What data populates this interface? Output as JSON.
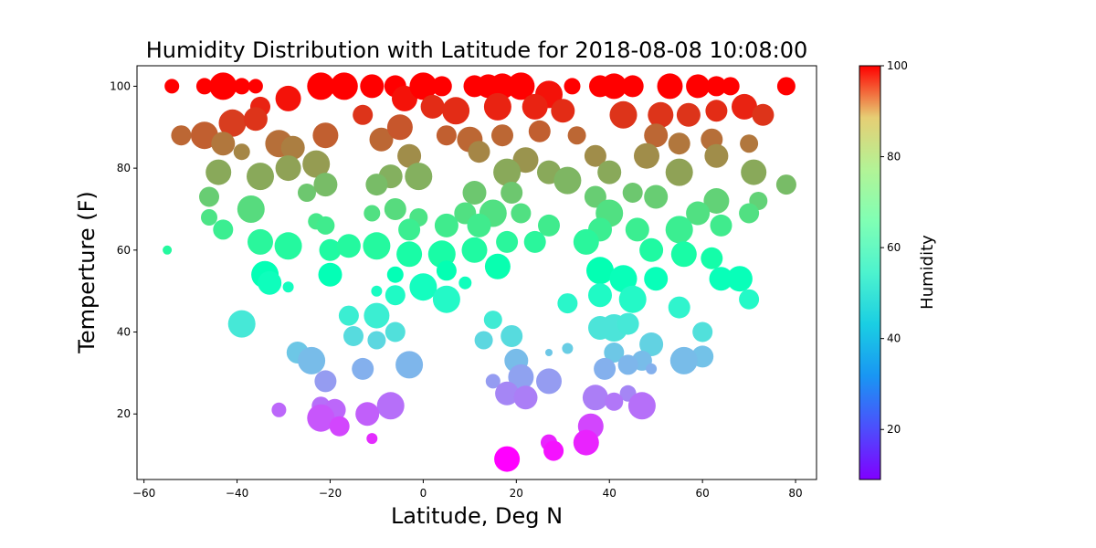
{
  "chart_data": {
    "type": "scatter",
    "title": "Humidity Distribution with Latitude for 2018-08-08 10:08:00",
    "xlabel": "Latitude, Deg N",
    "ylabel": "Temperture (F)",
    "colorbar_label": "Humidity",
    "xlim": [
      -61.5,
      84.5
    ],
    "ylim": [
      4,
      105
    ],
    "xticks": [
      -60,
      -40,
      -20,
      0,
      20,
      40,
      60,
      80
    ],
    "xtick_labels": [
      "−60",
      "−40",
      "−20",
      "0",
      "20",
      "40",
      "60",
      "80"
    ],
    "yticks": [
      20,
      40,
      60,
      80,
      100
    ],
    "ytick_labels": [
      "20",
      "40",
      "60",
      "80",
      "100"
    ],
    "colorbar_range": [
      9,
      100
    ],
    "colorbar_ticks": [
      20,
      40,
      60,
      80,
      100
    ],
    "colorbar_tick_labels": [
      "20",
      "40",
      "60",
      "80",
      "100"
    ],
    "colormap": "rainbow",
    "grid": false,
    "legend": "none",
    "points": [
      {
        "x": -54,
        "y": 100,
        "h": 100,
        "s": 8
      },
      {
        "x": -47,
        "y": 100,
        "h": 100,
        "s": 9
      },
      {
        "x": -43,
        "y": 100,
        "h": 100,
        "s": 15
      },
      {
        "x": -39,
        "y": 100,
        "h": 100,
        "s": 9
      },
      {
        "x": -36,
        "y": 100,
        "h": 100,
        "s": 8
      },
      {
        "x": -29,
        "y": 97,
        "h": 98,
        "s": 14
      },
      {
        "x": -22,
        "y": 100,
        "h": 100,
        "s": 15
      },
      {
        "x": -17,
        "y": 100,
        "h": 100,
        "s": 15
      },
      {
        "x": -11,
        "y": 100,
        "h": 100,
        "s": 13
      },
      {
        "x": -6,
        "y": 100,
        "h": 100,
        "s": 12
      },
      {
        "x": -4,
        "y": 97,
        "h": 98,
        "s": 14
      },
      {
        "x": 0,
        "y": 100,
        "h": 100,
        "s": 15
      },
      {
        "x": 4,
        "y": 100,
        "h": 100,
        "s": 11
      },
      {
        "x": 11,
        "y": 100,
        "h": 100,
        "s": 12
      },
      {
        "x": 14,
        "y": 100,
        "h": 100,
        "s": 13
      },
      {
        "x": 17,
        "y": 100,
        "h": 100,
        "s": 14
      },
      {
        "x": 21,
        "y": 100,
        "h": 100,
        "s": 15
      },
      {
        "x": 27,
        "y": 98,
        "h": 98,
        "s": 15
      },
      {
        "x": 32,
        "y": 100,
        "h": 100,
        "s": 9
      },
      {
        "x": 38,
        "y": 100,
        "h": 100,
        "s": 12
      },
      {
        "x": 41,
        "y": 100,
        "h": 100,
        "s": 14
      },
      {
        "x": 45,
        "y": 100,
        "h": 100,
        "s": 12
      },
      {
        "x": 53,
        "y": 100,
        "h": 100,
        "s": 14
      },
      {
        "x": 59,
        "y": 100,
        "h": 100,
        "s": 13
      },
      {
        "x": 63,
        "y": 100,
        "h": 100,
        "s": 11
      },
      {
        "x": 66,
        "y": 100,
        "h": 100,
        "s": 10
      },
      {
        "x": 78,
        "y": 100,
        "h": 100,
        "s": 10
      },
      {
        "x": -35,
        "y": 95,
        "h": 96,
        "s": 11
      },
      {
        "x": -41,
        "y": 91,
        "h": 93,
        "s": 15
      },
      {
        "x": -36,
        "y": 92,
        "h": 94,
        "s": 13
      },
      {
        "x": -13,
        "y": 93,
        "h": 94,
        "s": 11
      },
      {
        "x": 2,
        "y": 95,
        "h": 95,
        "s": 13
      },
      {
        "x": 7,
        "y": 94,
        "h": 95,
        "s": 15
      },
      {
        "x": 16,
        "y": 95,
        "h": 96,
        "s": 15
      },
      {
        "x": 24,
        "y": 95,
        "h": 96,
        "s": 14
      },
      {
        "x": 30,
        "y": 94,
        "h": 95,
        "s": 13
      },
      {
        "x": 43,
        "y": 93,
        "h": 94,
        "s": 15
      },
      {
        "x": 51,
        "y": 93,
        "h": 94,
        "s": 14
      },
      {
        "x": 57,
        "y": 93,
        "h": 94,
        "s": 13
      },
      {
        "x": 63,
        "y": 94,
        "h": 95,
        "s": 12
      },
      {
        "x": 69,
        "y": 95,
        "h": 96,
        "s": 14
      },
      {
        "x": 73,
        "y": 93,
        "h": 94,
        "s": 12
      },
      {
        "x": -52,
        "y": 88,
        "h": 88,
        "s": 11
      },
      {
        "x": -47,
        "y": 88,
        "h": 89,
        "s": 15
      },
      {
        "x": -43,
        "y": 86,
        "h": 86,
        "s": 13
      },
      {
        "x": -31,
        "y": 86,
        "h": 87,
        "s": 15
      },
      {
        "x": -21,
        "y": 88,
        "h": 89,
        "s": 14
      },
      {
        "x": -9,
        "y": 87,
        "h": 88,
        "s": 13
      },
      {
        "x": -5,
        "y": 90,
        "h": 90,
        "s": 14
      },
      {
        "x": 5,
        "y": 88,
        "h": 89,
        "s": 11
      },
      {
        "x": 10,
        "y": 87,
        "h": 88,
        "s": 14
      },
      {
        "x": 17,
        "y": 88,
        "h": 88,
        "s": 12
      },
      {
        "x": 25,
        "y": 89,
        "h": 89,
        "s": 12
      },
      {
        "x": 33,
        "y": 88,
        "h": 88,
        "s": 10
      },
      {
        "x": 50,
        "y": 88,
        "h": 88,
        "s": 13
      },
      {
        "x": 55,
        "y": 86,
        "h": 86,
        "s": 12
      },
      {
        "x": 62,
        "y": 87,
        "h": 87,
        "s": 12
      },
      {
        "x": 70,
        "y": 86,
        "h": 86,
        "s": 10
      },
      {
        "x": -39,
        "y": 84,
        "h": 84,
        "s": 9
      },
      {
        "x": -28,
        "y": 85,
        "h": 85,
        "s": 13
      },
      {
        "x": -3,
        "y": 83,
        "h": 83,
        "s": 13
      },
      {
        "x": 12,
        "y": 84,
        "h": 84,
        "s": 12
      },
      {
        "x": 22,
        "y": 82,
        "h": 82,
        "s": 14
      },
      {
        "x": 37,
        "y": 83,
        "h": 83,
        "s": 12
      },
      {
        "x": 48,
        "y": 83,
        "h": 83,
        "s": 14
      },
      {
        "x": 63,
        "y": 83,
        "h": 83,
        "s": 13
      },
      {
        "x": -44,
        "y": 79,
        "h": 79,
        "s": 14
      },
      {
        "x": -35,
        "y": 78,
        "h": 79,
        "s": 15
      },
      {
        "x": -29,
        "y": 80,
        "h": 80,
        "s": 14
      },
      {
        "x": -23,
        "y": 81,
        "h": 81,
        "s": 15
      },
      {
        "x": -7,
        "y": 78,
        "h": 78,
        "s": 13
      },
      {
        "x": -1,
        "y": 78,
        "h": 78,
        "s": 15
      },
      {
        "x": 18,
        "y": 79,
        "h": 79,
        "s": 15
      },
      {
        "x": 27,
        "y": 79,
        "h": 79,
        "s": 13
      },
      {
        "x": 31,
        "y": 77,
        "h": 77,
        "s": 15
      },
      {
        "x": 40,
        "y": 79,
        "h": 79,
        "s": 13
      },
      {
        "x": 55,
        "y": 79,
        "h": 80,
        "s": 15
      },
      {
        "x": 71,
        "y": 79,
        "h": 79,
        "s": 14
      },
      {
        "x": 78,
        "y": 76,
        "h": 76,
        "s": 11
      },
      {
        "x": -46,
        "y": 73,
        "h": 73,
        "s": 11
      },
      {
        "x": -25,
        "y": 74,
        "h": 74,
        "s": 10
      },
      {
        "x": -21,
        "y": 76,
        "h": 76,
        "s": 13
      },
      {
        "x": -10,
        "y": 76,
        "h": 76,
        "s": 12
      },
      {
        "x": 11,
        "y": 74,
        "h": 74,
        "s": 13
      },
      {
        "x": 19,
        "y": 74,
        "h": 74,
        "s": 12
      },
      {
        "x": 37,
        "y": 73,
        "h": 73,
        "s": 12
      },
      {
        "x": 45,
        "y": 74,
        "h": 74,
        "s": 11
      },
      {
        "x": 50,
        "y": 73,
        "h": 73,
        "s": 13
      },
      {
        "x": 63,
        "y": 72,
        "h": 72,
        "s": 14
      },
      {
        "x": 72,
        "y": 72,
        "h": 72,
        "s": 10
      },
      {
        "x": -46,
        "y": 68,
        "h": 68,
        "s": 9
      },
      {
        "x": -37,
        "y": 70,
        "h": 70,
        "s": 15
      },
      {
        "x": -23,
        "y": 67,
        "h": 67,
        "s": 9
      },
      {
        "x": -11,
        "y": 69,
        "h": 69,
        "s": 9
      },
      {
        "x": -6,
        "y": 70,
        "h": 70,
        "s": 12
      },
      {
        "x": -1,
        "y": 68,
        "h": 68,
        "s": 10
      },
      {
        "x": 9,
        "y": 69,
        "h": 69,
        "s": 12
      },
      {
        "x": 15,
        "y": 69,
        "h": 69,
        "s": 15
      },
      {
        "x": 21,
        "y": 69,
        "h": 69,
        "s": 11
      },
      {
        "x": 40,
        "y": 69,
        "h": 69,
        "s": 15
      },
      {
        "x": 59,
        "y": 69,
        "h": 69,
        "s": 13
      },
      {
        "x": 70,
        "y": 69,
        "h": 69,
        "s": 11
      },
      {
        "x": -43,
        "y": 65,
        "h": 65,
        "s": 11
      },
      {
        "x": -21,
        "y": 66,
        "h": 66,
        "s": 10
      },
      {
        "x": -3,
        "y": 65,
        "h": 65,
        "s": 12
      },
      {
        "x": 5,
        "y": 66,
        "h": 66,
        "s": 13
      },
      {
        "x": 12,
        "y": 66,
        "h": 66,
        "s": 13
      },
      {
        "x": 27,
        "y": 66,
        "h": 66,
        "s": 12
      },
      {
        "x": 38,
        "y": 65,
        "h": 65,
        "s": 13
      },
      {
        "x": 46,
        "y": 65,
        "h": 65,
        "s": 13
      },
      {
        "x": 55,
        "y": 65,
        "h": 65,
        "s": 15
      },
      {
        "x": 64,
        "y": 66,
        "h": 66,
        "s": 12
      },
      {
        "x": -55,
        "y": 60,
        "h": 61,
        "s": 5
      },
      {
        "x": -35,
        "y": 62,
        "h": 62,
        "s": 14
      },
      {
        "x": -29,
        "y": 61,
        "h": 61,
        "s": 15
      },
      {
        "x": -20,
        "y": 60,
        "h": 60,
        "s": 12
      },
      {
        "x": -16,
        "y": 61,
        "h": 61,
        "s": 13
      },
      {
        "x": -10,
        "y": 61,
        "h": 61,
        "s": 15
      },
      {
        "x": -3,
        "y": 59,
        "h": 59,
        "s": 14
      },
      {
        "x": 4,
        "y": 59,
        "h": 59,
        "s": 15
      },
      {
        "x": 11,
        "y": 60,
        "h": 60,
        "s": 14
      },
      {
        "x": 18,
        "y": 62,
        "h": 62,
        "s": 12
      },
      {
        "x": 24,
        "y": 62,
        "h": 62,
        "s": 12
      },
      {
        "x": 35,
        "y": 62,
        "h": 62,
        "s": 14
      },
      {
        "x": 49,
        "y": 60,
        "h": 60,
        "s": 13
      },
      {
        "x": 56,
        "y": 59,
        "h": 59,
        "s": 14
      },
      {
        "x": 62,
        "y": 58,
        "h": 58,
        "s": 12
      },
      {
        "x": -34,
        "y": 54,
        "h": 54,
        "s": 15
      },
      {
        "x": -20,
        "y": 54,
        "h": 54,
        "s": 13
      },
      {
        "x": -6,
        "y": 54,
        "h": 54,
        "s": 9
      },
      {
        "x": 5,
        "y": 55,
        "h": 55,
        "s": 11
      },
      {
        "x": 16,
        "y": 56,
        "h": 56,
        "s": 14
      },
      {
        "x": 38,
        "y": 55,
        "h": 55,
        "s": 15
      },
      {
        "x": 43,
        "y": 53,
        "h": 53,
        "s": 15
      },
      {
        "x": 50,
        "y": 53,
        "h": 53,
        "s": 13
      },
      {
        "x": 64,
        "y": 53,
        "h": 53,
        "s": 13
      },
      {
        "x": 68,
        "y": 53,
        "h": 53,
        "s": 14
      },
      {
        "x": -33,
        "y": 52,
        "h": 52,
        "s": 13
      },
      {
        "x": -29,
        "y": 51,
        "h": 51,
        "s": 6
      },
      {
        "x": 0,
        "y": 51,
        "h": 51,
        "s": 15
      },
      {
        "x": 9,
        "y": 52,
        "h": 52,
        "s": 7
      },
      {
        "x": -10,
        "y": 50,
        "h": 50,
        "s": 6
      },
      {
        "x": -6,
        "y": 49,
        "h": 49,
        "s": 11
      },
      {
        "x": 5,
        "y": 48,
        "h": 48,
        "s": 15
      },
      {
        "x": 31,
        "y": 47,
        "h": 47,
        "s": 11
      },
      {
        "x": 38,
        "y": 49,
        "h": 49,
        "s": 13
      },
      {
        "x": 45,
        "y": 48,
        "h": 48,
        "s": 15
      },
      {
        "x": 55,
        "y": 46,
        "h": 46,
        "s": 12
      },
      {
        "x": 70,
        "y": 48,
        "h": 48,
        "s": 11
      },
      {
        "x": -16,
        "y": 44,
        "h": 44,
        "s": 11
      },
      {
        "x": -10,
        "y": 44,
        "h": 44,
        "s": 14
      },
      {
        "x": 15,
        "y": 43,
        "h": 43,
        "s": 10
      },
      {
        "x": -39,
        "y": 42,
        "h": 42,
        "s": 15
      },
      {
        "x": 38,
        "y": 41,
        "h": 41,
        "s": 13
      },
      {
        "x": 41,
        "y": 41,
        "h": 41,
        "s": 15
      },
      {
        "x": 44,
        "y": 42,
        "h": 42,
        "s": 12
      },
      {
        "x": -15,
        "y": 39,
        "h": 39,
        "s": 11
      },
      {
        "x": -6,
        "y": 40,
        "h": 40,
        "s": 11
      },
      {
        "x": 60,
        "y": 40,
        "h": 40,
        "s": 11
      },
      {
        "x": -10,
        "y": 38,
        "h": 38,
        "s": 10
      },
      {
        "x": 13,
        "y": 38,
        "h": 38,
        "s": 10
      },
      {
        "x": 19,
        "y": 39,
        "h": 39,
        "s": 12
      },
      {
        "x": 49,
        "y": 37,
        "h": 37,
        "s": 13
      },
      {
        "x": 31,
        "y": 36,
        "h": 36,
        "s": 6
      },
      {
        "x": -27,
        "y": 35,
        "h": 35,
        "s": 12
      },
      {
        "x": 27,
        "y": 35,
        "h": 35,
        "s": 4
      },
      {
        "x": 41,
        "y": 35,
        "h": 35,
        "s": 11
      },
      {
        "x": 60,
        "y": 34,
        "h": 34,
        "s": 12
      },
      {
        "x": -24,
        "y": 33,
        "h": 33,
        "s": 15
      },
      {
        "x": 20,
        "y": 33,
        "h": 33,
        "s": 13
      },
      {
        "x": 47,
        "y": 33,
        "h": 33,
        "s": 11
      },
      {
        "x": 56,
        "y": 33,
        "h": 33,
        "s": 15
      },
      {
        "x": -3,
        "y": 32,
        "h": 32,
        "s": 15
      },
      {
        "x": -13,
        "y": 31,
        "h": 31,
        "s": 12
      },
      {
        "x": 39,
        "y": 31,
        "h": 31,
        "s": 12
      },
      {
        "x": 44,
        "y": 32,
        "h": 32,
        "s": 11
      },
      {
        "x": 49,
        "y": 31,
        "h": 31,
        "s": 6
      },
      {
        "x": -21,
        "y": 28,
        "h": 28,
        "s": 12
      },
      {
        "x": 15,
        "y": 28,
        "h": 28,
        "s": 8
      },
      {
        "x": 21,
        "y": 29,
        "h": 29,
        "s": 14
      },
      {
        "x": 27,
        "y": 28,
        "h": 28,
        "s": 14
      },
      {
        "x": 18,
        "y": 25,
        "h": 25,
        "s": 13
      },
      {
        "x": 22,
        "y": 24,
        "h": 24,
        "s": 13
      },
      {
        "x": 37,
        "y": 24,
        "h": 24,
        "s": 14
      },
      {
        "x": 44,
        "y": 25,
        "h": 25,
        "s": 9
      },
      {
        "x": -31,
        "y": 21,
        "h": 21,
        "s": 8
      },
      {
        "x": -22,
        "y": 22,
        "h": 22,
        "s": 10
      },
      {
        "x": -19,
        "y": 21,
        "h": 21,
        "s": 12
      },
      {
        "x": -7,
        "y": 22,
        "h": 22,
        "s": 15
      },
      {
        "x": 47,
        "y": 22,
        "h": 22,
        "s": 15
      },
      {
        "x": -22,
        "y": 19,
        "h": 19,
        "s": 15
      },
      {
        "x": -12,
        "y": 20,
        "h": 20,
        "s": 13
      },
      {
        "x": 41,
        "y": 23,
        "h": 23,
        "s": 10
      },
      {
        "x": -18,
        "y": 17,
        "h": 17,
        "s": 11
      },
      {
        "x": 36,
        "y": 17,
        "h": 17,
        "s": 14
      },
      {
        "x": -11,
        "y": 14,
        "h": 14,
        "s": 6
      },
      {
        "x": 35,
        "y": 13,
        "h": 13,
        "s": 14
      },
      {
        "x": 27,
        "y": 13,
        "h": 13,
        "s": 9
      },
      {
        "x": 28,
        "y": 11,
        "h": 11,
        "s": 11
      },
      {
        "x": 18,
        "y": 9,
        "h": 9,
        "s": 14
      }
    ]
  }
}
